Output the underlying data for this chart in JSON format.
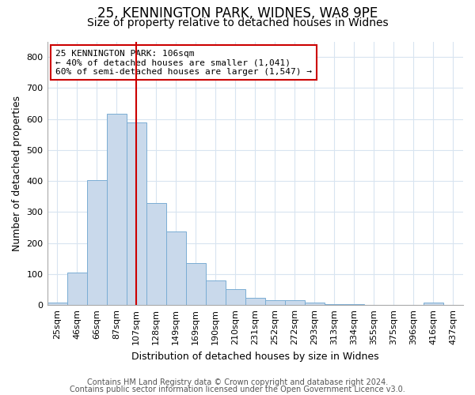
{
  "title": "25, KENNINGTON PARK, WIDNES, WA8 9PE",
  "subtitle": "Size of property relative to detached houses in Widnes",
  "xlabel": "Distribution of detached houses by size in Widnes",
  "ylabel": "Number of detached properties",
  "bar_labels": [
    "25sqm",
    "46sqm",
    "66sqm",
    "87sqm",
    "107sqm",
    "128sqm",
    "149sqm",
    "169sqm",
    "190sqm",
    "210sqm",
    "231sqm",
    "252sqm",
    "272sqm",
    "293sqm",
    "313sqm",
    "334sqm",
    "355sqm",
    "375sqm",
    "396sqm",
    "416sqm",
    "437sqm"
  ],
  "bar_values": [
    7,
    106,
    403,
    617,
    590,
    330,
    238,
    135,
    79,
    52,
    24,
    15,
    16,
    8,
    3,
    2,
    0,
    0,
    0,
    9,
    0
  ],
  "bar_color": "#c9d9eb",
  "bar_edge_color": "#7aadd4",
  "vline_x": 4,
  "vline_color": "#cc0000",
  "annotation_line1": "25 KENNINGTON PARK: 106sqm",
  "annotation_line2": "← 40% of detached houses are smaller (1,041)",
  "annotation_line3": "60% of semi-detached houses are larger (1,547) →",
  "annotation_box_color": "#ffffff",
  "annotation_box_edge": "#cc0000",
  "ylim": [
    0,
    850
  ],
  "yticks": [
    0,
    100,
    200,
    300,
    400,
    500,
    600,
    700,
    800
  ],
  "footer1": "Contains HM Land Registry data © Crown copyright and database right 2024.",
  "footer2": "Contains public sector information licensed under the Open Government Licence v3.0.",
  "background_color": "#ffffff",
  "plot_bg_color": "#ffffff",
  "grid_color": "#d8e4f0",
  "title_fontsize": 12,
  "subtitle_fontsize": 10,
  "footer_fontsize": 7,
  "axis_fontsize": 9,
  "tick_fontsize": 8
}
